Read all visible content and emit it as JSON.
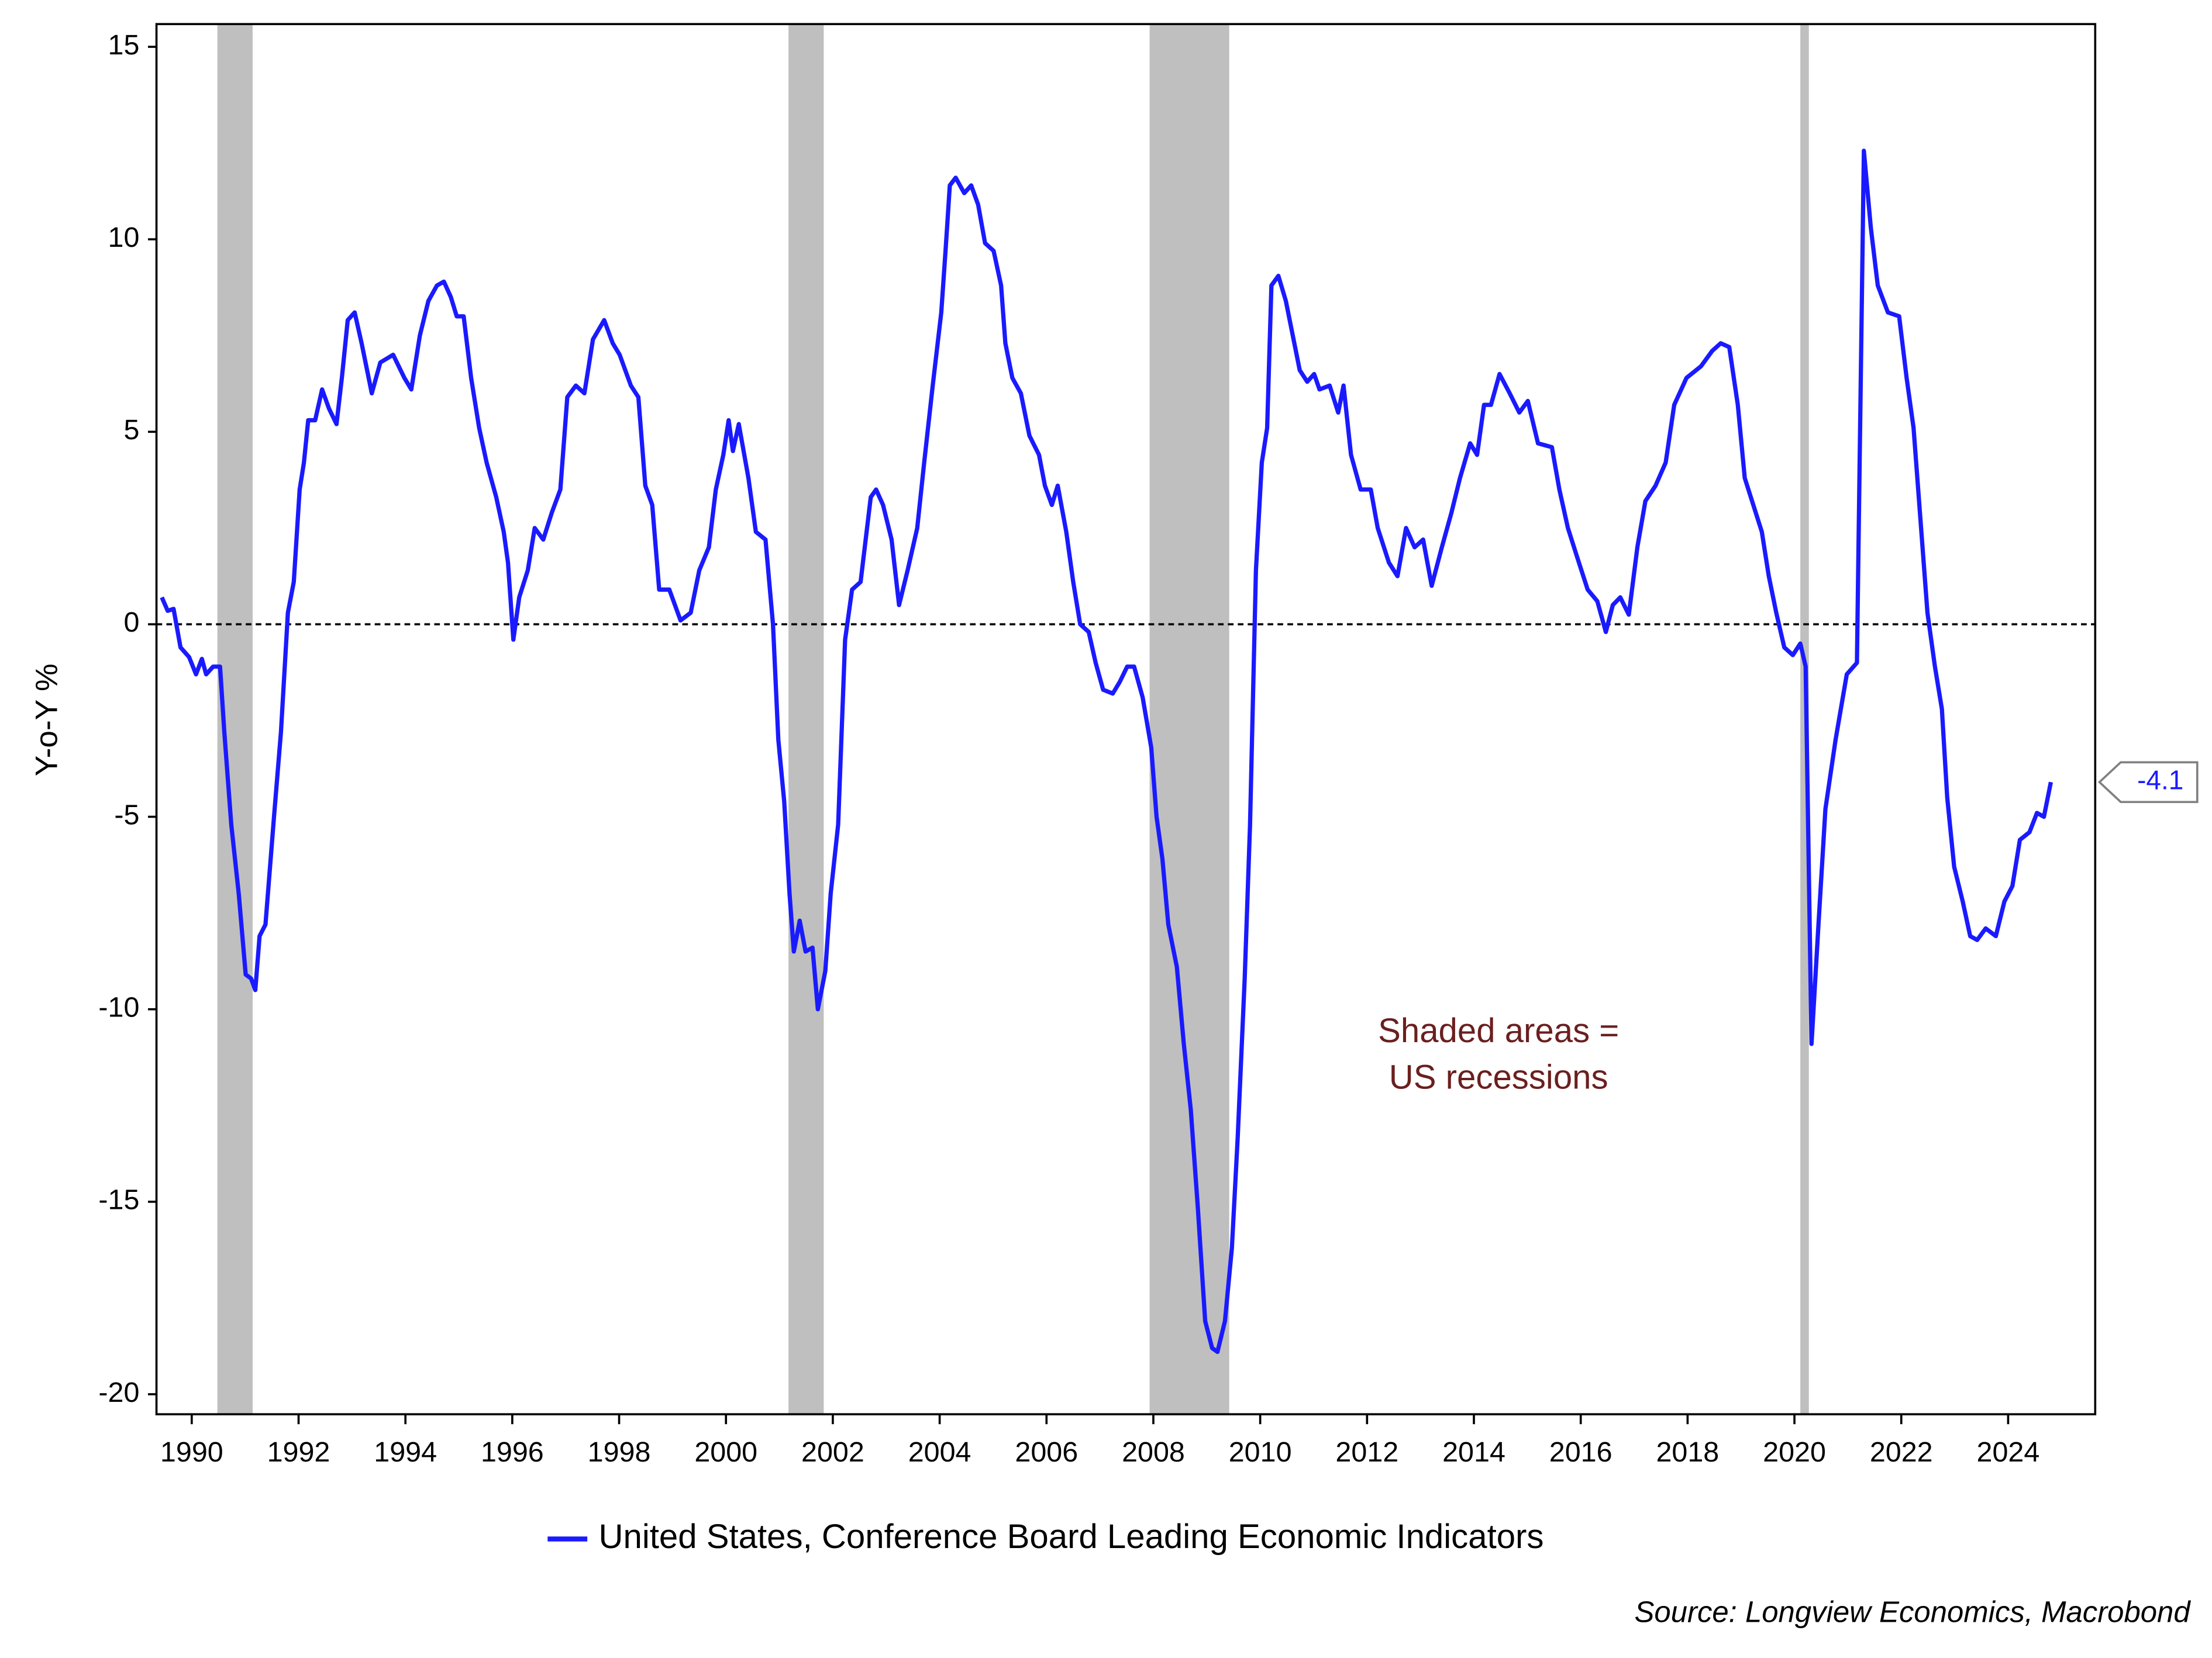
{
  "chart_data": {
    "type": "line",
    "ylabel": "Y-o-Y %",
    "annotation": [
      "Shaded areas =",
      "US recessions"
    ],
    "source": "Source: Longview Economics, Macrobond",
    "xlim": [
      1989.34,
      2025.63
    ],
    "ylim": [
      -20.52,
      15.59
    ],
    "xticks": [
      1990,
      1992,
      1994,
      1996,
      1998,
      2000,
      2002,
      2004,
      2006,
      2008,
      2010,
      2012,
      2014,
      2016,
      2018,
      2020,
      2022,
      2024
    ],
    "yticks": [
      -20,
      -15,
      -10,
      -5,
      0,
      5,
      10,
      15
    ],
    "hline": 0,
    "recessions": [
      [
        1990.48,
        1991.14
      ],
      [
        2001.17,
        2001.83
      ],
      [
        2007.93,
        2009.42
      ],
      [
        2020.11,
        2020.27
      ]
    ],
    "recession_color": "#bfbfbf",
    "x": [
      1989.44,
      1989.55,
      1989.66,
      1989.79,
      1989.95,
      1990.08,
      1990.19,
      1990.27,
      1990.4,
      1990.53,
      1990.61,
      1990.74,
      1990.88,
      1991.01,
      1991.11,
      1991.19,
      1991.27,
      1991.38,
      1991.54,
      1991.67,
      1991.8,
      1991.91,
      1992.02,
      1992.1,
      1992.18,
      1992.31,
      1992.44,
      1992.57,
      1992.71,
      1992.81,
      1992.92,
      1993.05,
      1993.18,
      1993.37,
      1993.53,
      1993.77,
      1993.98,
      1994.11,
      1994.27,
      1994.43,
      1994.59,
      1994.72,
      1994.85,
      1994.96,
      1995.09,
      1995.23,
      1995.38,
      1995.52,
      1995.7,
      1995.84,
      1995.92,
      1996.02,
      1996.13,
      1996.29,
      1996.42,
      1996.58,
      1996.74,
      1996.9,
      1997.03,
      1997.19,
      1997.35,
      1997.51,
      1997.72,
      1997.88,
      1998.01,
      1998.22,
      1998.36,
      1998.49,
      1998.62,
      1998.75,
      1998.94,
      1999.15,
      1999.34,
      1999.5,
      1999.68,
      1999.81,
      1999.95,
      2000.05,
      2000.13,
      2000.24,
      2000.42,
      2000.56,
      2000.74,
      2000.88,
      2000.98,
      2001.09,
      2001.19,
      2001.27,
      2001.38,
      2001.49,
      2001.62,
      2001.72,
      2001.86,
      2001.96,
      2002.1,
      2002.23,
      2002.36,
      2002.52,
      2002.71,
      2002.81,
      2002.94,
      2003.1,
      2003.24,
      2003.4,
      2003.58,
      2003.71,
      2003.87,
      2004.03,
      2004.11,
      2004.19,
      2004.3,
      2004.46,
      2004.59,
      2004.72,
      2004.85,
      2005.01,
      2005.15,
      2005.23,
      2005.36,
      2005.52,
      2005.68,
      2005.86,
      2005.97,
      2006.1,
      2006.21,
      2006.37,
      2006.5,
      2006.63,
      2006.79,
      2006.92,
      2007.06,
      2007.24,
      2007.37,
      2007.51,
      2007.64,
      2007.8,
      2007.96,
      2008.06,
      2008.17,
      2008.28,
      2008.44,
      2008.57,
      2008.7,
      2008.83,
      2008.97,
      2009.1,
      2009.2,
      2009.34,
      2009.47,
      2009.58,
      2009.71,
      2009.81,
      2009.92,
      2010.03,
      2010.13,
      2010.21,
      2010.34,
      2010.48,
      2010.61,
      2010.74,
      2010.88,
      2011.01,
      2011.11,
      2011.3,
      2011.46,
      2011.56,
      2011.7,
      2011.88,
      2012.07,
      2012.2,
      2012.41,
      2012.57,
      2012.73,
      2012.89,
      2013.05,
      2013.21,
      2013.4,
      2013.58,
      2013.74,
      2013.93,
      2014.06,
      2014.19,
      2014.32,
      2014.48,
      2014.67,
      2014.85,
      2015.01,
      2015.2,
      2015.46,
      2015.6,
      2015.76,
      2015.92,
      2016.13,
      2016.31,
      2016.47,
      2016.6,
      2016.74,
      2016.9,
      2017.06,
      2017.21,
      2017.4,
      2017.59,
      2017.75,
      2017.98,
      2018.25,
      2018.46,
      2018.62,
      2018.78,
      2018.94,
      2019.07,
      2019.23,
      2019.39,
      2019.52,
      2019.66,
      2019.81,
      2019.97,
      2020.11,
      2020.21,
      2020.32,
      2020.45,
      2020.58,
      2020.77,
      2020.98,
      2021.17,
      2021.3,
      2021.43,
      2021.56,
      2021.75,
      2021.96,
      2022.1,
      2022.23,
      2022.36,
      2022.49,
      2022.63,
      2022.76,
      2022.86,
      2022.99,
      2023.15,
      2023.29,
      2023.42,
      2023.58,
      2023.77,
      2023.93,
      2024.08,
      2024.22,
      2024.4,
      2024.54,
      2024.67,
      2024.8
    ],
    "series": [
      {
        "name": "United States, Conference Board Leading Economic Indicators",
        "color": "#1a1aff",
        "values": [
          0.7,
          0.35,
          0.4,
          -0.6,
          -0.85,
          -1.3,
          -0.9,
          -1.3,
          -1.1,
          -1.1,
          -2.8,
          -5.2,
          -7.0,
          -9.1,
          -9.2,
          -9.5,
          -8.1,
          -7.8,
          -5.0,
          -2.8,
          0.3,
          1.1,
          3.5,
          4.2,
          5.3,
          5.3,
          6.1,
          5.6,
          5.2,
          6.4,
          7.9,
          8.1,
          7.3,
          6.0,
          6.8,
          7.0,
          6.4,
          6.1,
          7.5,
          8.4,
          8.8,
          8.9,
          8.5,
          8.0,
          8.0,
          6.4,
          5.1,
          4.2,
          3.3,
          2.4,
          1.6,
          -0.4,
          0.7,
          1.4,
          2.5,
          2.2,
          2.9,
          3.5,
          5.9,
          6.2,
          6.0,
          7.4,
          7.9,
          7.3,
          7.0,
          6.2,
          5.9,
          3.6,
          3.1,
          0.9,
          0.9,
          0.1,
          0.3,
          1.4,
          2.0,
          3.5,
          4.4,
          5.3,
          4.5,
          5.2,
          3.8,
          2.4,
          2.2,
          0.0,
          -3.0,
          -4.6,
          -7.0,
          -8.5,
          -7.7,
          -8.5,
          -8.4,
          -10.0,
          -9.0,
          -7.0,
          -5.2,
          -0.4,
          0.9,
          1.1,
          3.3,
          3.5,
          3.1,
          2.2,
          0.5,
          1.4,
          2.5,
          4.2,
          6.2,
          8.1,
          9.7,
          11.4,
          11.6,
          11.2,
          11.4,
          10.9,
          9.9,
          9.7,
          8.8,
          7.3,
          6.4,
          6.0,
          4.9,
          4.4,
          3.6,
          3.1,
          3.6,
          2.4,
          1.1,
          0.0,
          -0.2,
          -1.0,
          -1.7,
          -1.8,
          -1.5,
          -1.1,
          -1.1,
          -1.9,
          -3.2,
          -5.0,
          -6.1,
          -7.8,
          -8.9,
          -10.9,
          -12.6,
          -15.1,
          -18.1,
          -18.8,
          -18.9,
          -18.1,
          -16.2,
          -13.3,
          -9.2,
          -5.2,
          1.4,
          4.2,
          5.1,
          8.8,
          9.05,
          8.4,
          7.5,
          6.6,
          6.3,
          6.5,
          6.1,
          6.2,
          5.5,
          6.2,
          4.4,
          3.5,
          3.5,
          2.5,
          1.6,
          1.25,
          2.5,
          2.0,
          2.2,
          1.0,
          2.0,
          2.9,
          3.8,
          4.7,
          4.4,
          5.7,
          5.7,
          6.5,
          6.0,
          5.5,
          5.8,
          4.7,
          4.6,
          3.5,
          2.5,
          1.8,
          0.9,
          0.6,
          -0.2,
          0.5,
          0.7,
          0.25,
          2.0,
          3.2,
          3.6,
          4.2,
          5.7,
          6.4,
          6.7,
          7.1,
          7.3,
          7.2,
          5.7,
          3.8,
          3.1,
          2.4,
          1.25,
          0.3,
          -0.6,
          -0.8,
          -0.5,
          -1.1,
          -10.9,
          -7.8,
          -4.8,
          -3.0,
          -1.3,
          -1.0,
          12.3,
          10.3,
          8.8,
          8.1,
          8.0,
          6.4,
          5.1,
          2.7,
          0.3,
          -1.1,
          -2.2,
          -4.5,
          -6.3,
          -7.2,
          -8.1,
          -8.2,
          -7.9,
          -8.1,
          -7.2,
          -6.8,
          -5.6,
          -5.4,
          -4.9,
          -5.0,
          -4.1
        ]
      }
    ]
  }
}
